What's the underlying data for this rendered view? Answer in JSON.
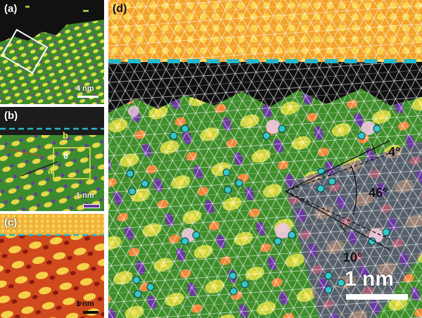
{
  "panels": {
    "a": {
      "label": "(a)",
      "scale_label": "4 nm"
    },
    "b": {
      "label": "(b)",
      "scale_label": "1 nm",
      "vector_a": "a",
      "vector_b": "b",
      "angle_symbol": "θ"
    },
    "c": {
      "label": "(c)",
      "scale_label": "1 nm"
    },
    "d": {
      "label": "(d)",
      "scale_label": "1 nm",
      "angle_top": "4°",
      "angle_mid": "46°",
      "angle_bottom": "10°"
    }
  },
  "colors": {
    "background_dark": "#1a1a1a",
    "substrate_orange": "#f5a623",
    "film_green": "#4f9a2a",
    "highlight_yellow": "#f4e24a",
    "trough_purple": "#6a3aa0",
    "interface_cyan": "#27b8c8",
    "atom_marker": "#36c7c9",
    "lattice_white": "#ffffff"
  }
}
